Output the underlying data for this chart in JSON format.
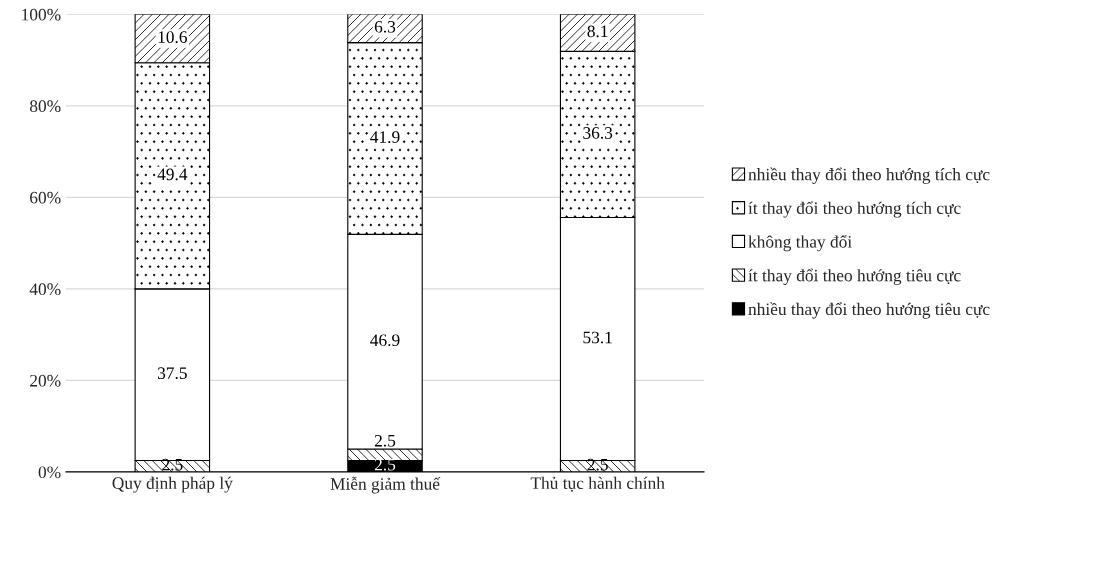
{
  "chart_data": {
    "type": "bar",
    "stacked": true,
    "categories": [
      "Quy định pháp lý",
      "Miễn giảm thuế",
      "Thủ tục hành chính"
    ],
    "series": [
      {
        "name": "nhiều thay đổi theo hướng tiêu cực",
        "color": "#000000",
        "values": [
          0,
          2.5,
          0
        ],
        "value_labels": [
          null,
          "2.5",
          null
        ]
      },
      {
        "name": "ít thay đổi theo hướng tiêu cực",
        "color": "#000000",
        "values": [
          2.5,
          2.5,
          2.5
        ],
        "value_labels": [
          "2.5",
          "2.5",
          "2.5"
        ]
      },
      {
        "name": "không thay đổi",
        "color": "#ffffff",
        "values": [
          37.5,
          46.9,
          53.1
        ],
        "value_labels": [
          "37.5",
          "46.9",
          "53.1"
        ]
      },
      {
        "name": "ít thay đổi theo hướng tích cực",
        "color": "#000000",
        "values": [
          49.4,
          41.9,
          36.3
        ],
        "value_labels": [
          "49.4",
          "41.9",
          "36.3"
        ]
      },
      {
        "name": "nhiều thay đổi theo hướng tích cực",
        "color": "#000000",
        "values": [
          10.6,
          6.3,
          8.1
        ],
        "value_labels": [
          "10.6",
          "6.3",
          "8.1"
        ]
      }
    ],
    "ylim": [
      0,
      100
    ],
    "yticks": [
      {
        "value": 0,
        "label": "0%"
      },
      {
        "value": 20,
        "label": "20%"
      },
      {
        "value": 40,
        "label": "40%"
      },
      {
        "value": 60,
        "label": "60%"
      },
      {
        "value": 80,
        "label": "80%"
      },
      {
        "value": 100,
        "label": "100%"
      }
    ],
    "grid": "y",
    "legend": "right"
  }
}
